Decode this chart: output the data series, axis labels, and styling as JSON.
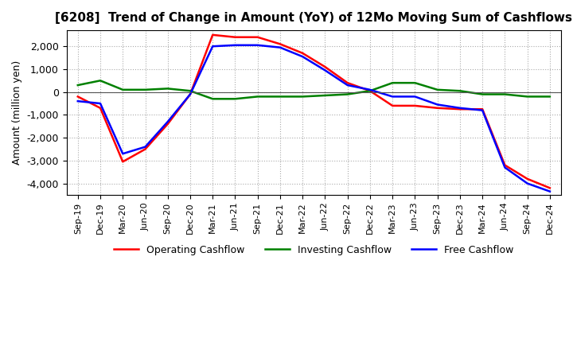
{
  "title": "[6208]  Trend of Change in Amount (YoY) of 12Mo Moving Sum of Cashflows",
  "ylabel": "Amount (million yen)",
  "x_labels": [
    "Sep-19",
    "Dec-19",
    "Mar-20",
    "Jun-20",
    "Sep-20",
    "Dec-20",
    "Mar-21",
    "Jun-21",
    "Sep-21",
    "Dec-21",
    "Mar-22",
    "Jun-22",
    "Sep-22",
    "Dec-22",
    "Mar-23",
    "Jun-23",
    "Sep-23",
    "Dec-23",
    "Mar-24",
    "Jun-24",
    "Sep-24",
    "Dec-24"
  ],
  "operating_cashflow": [
    -200,
    -700,
    -3050,
    -2500,
    -1400,
    -100,
    2500,
    2400,
    2400,
    2100,
    1700,
    1100,
    400,
    50,
    -600,
    -600,
    -700,
    -750,
    -750,
    -3200,
    -3800,
    -4200
  ],
  "investing_cashflow": [
    300,
    500,
    100,
    100,
    150,
    50,
    -300,
    -300,
    -200,
    -200,
    -200,
    -150,
    -100,
    50,
    400,
    400,
    100,
    50,
    -100,
    -100,
    -200,
    -200
  ],
  "free_cashflow": [
    -400,
    -500,
    -2700,
    -2400,
    -1300,
    -100,
    2000,
    2050,
    2050,
    1950,
    1550,
    950,
    300,
    100,
    -200,
    -200,
    -550,
    -700,
    -800,
    -3300,
    -4000,
    -4350
  ],
  "ylim": [
    -4500,
    2700
  ],
  "yticks": [
    -4000,
    -3000,
    -2000,
    -1000,
    0,
    1000,
    2000
  ],
  "operating_color": "#FF0000",
  "investing_color": "#008000",
  "free_color": "#0000FF",
  "background_color": "#FFFFFF",
  "grid_color": "#AAAAAA"
}
